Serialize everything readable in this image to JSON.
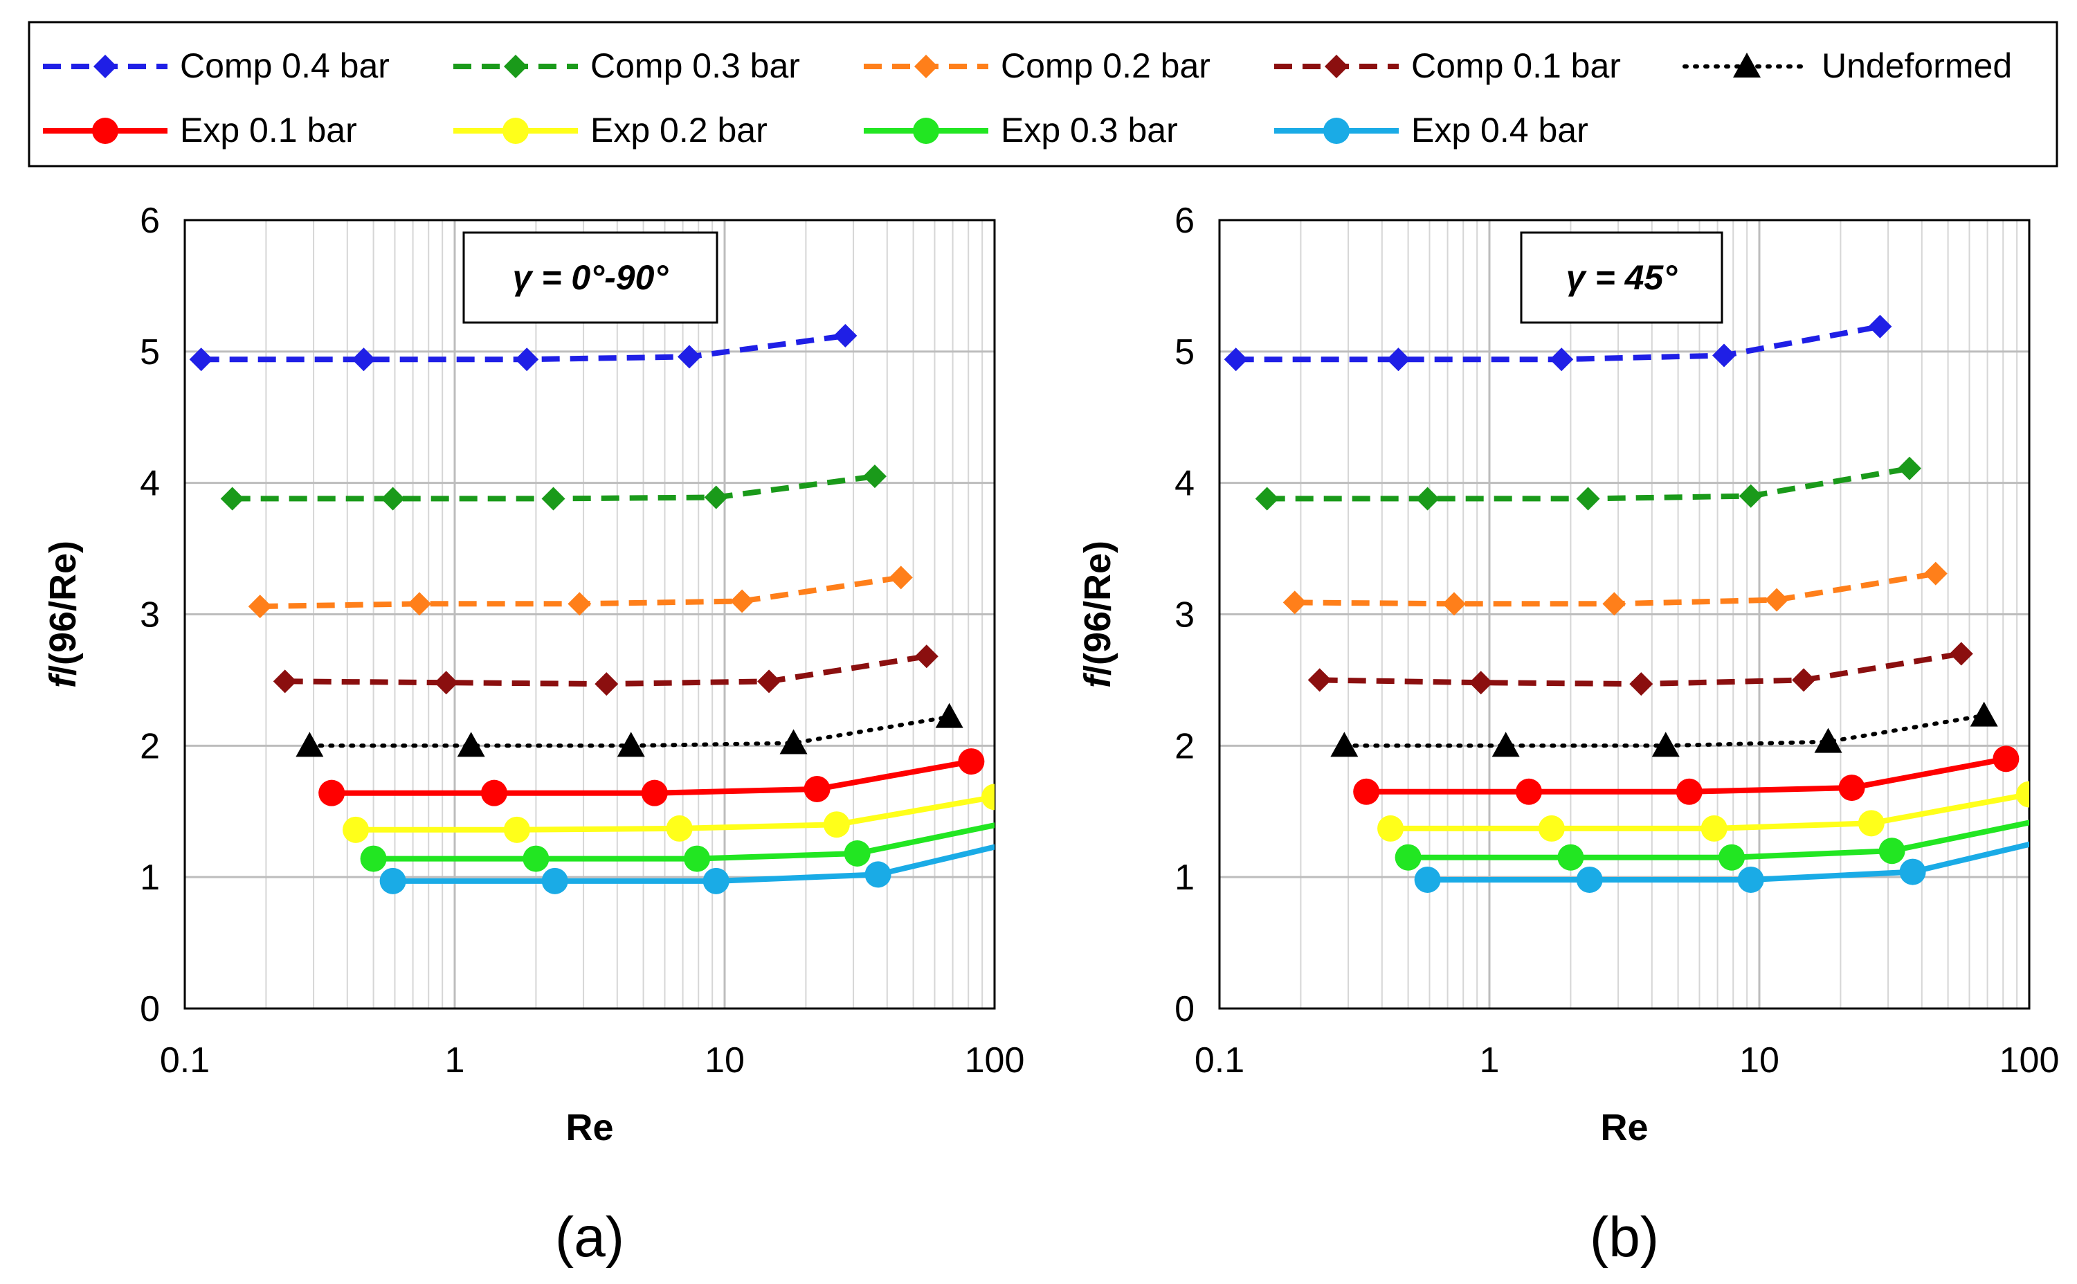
{
  "legend": {
    "placement": "top",
    "entries": [
      {
        "label": "Comp 0.4 bar",
        "color": "#1f1fe6",
        "dash": "dashed",
        "marker": "diamond"
      },
      {
        "label": "Comp 0.3 bar",
        "color": "#1a9a1a",
        "dash": "dashed",
        "marker": "diamond"
      },
      {
        "label": "Comp 0.2 bar",
        "color": "#ff7f1a",
        "dash": "dashed",
        "marker": "diamond"
      },
      {
        "label": "Comp 0.1 bar",
        "color": "#8b0f0f",
        "dash": "dashed",
        "marker": "diamond"
      },
      {
        "label": "Undeformed",
        "color": "#000000",
        "dash": "dotted",
        "marker": "triangle"
      },
      {
        "label": "Exp 0.1 bar",
        "color": "#ff0000",
        "dash": "solid",
        "marker": "circle"
      },
      {
        "label": "Exp 0.2 bar",
        "color": "#ffff1a",
        "dash": "solid",
        "marker": "circle"
      },
      {
        "label": "Exp 0.3 bar",
        "color": "#22e622",
        "dash": "solid",
        "marker": "circle"
      },
      {
        "label": "Exp 0.4 bar",
        "color": "#1aabe6",
        "dash": "solid",
        "marker": "circle"
      }
    ]
  },
  "chart_data": [
    {
      "type": "line",
      "panel_label": "(a)",
      "annotation": "γ = 0°-90°",
      "xlabel": "Re",
      "ylabel": "f/(96/Re)",
      "xscale": "log",
      "xlim": [
        0.1,
        100
      ],
      "ylim": [
        0,
        6
      ],
      "xticks": [
        "0.1",
        "1",
        "10",
        "100"
      ],
      "yticks": [
        "0",
        "1",
        "2",
        "3",
        "4",
        "5",
        "6"
      ],
      "grid": true,
      "series": [
        {
          "name": "Comp 0.4 bar",
          "x": [
            0.115,
            0.46,
            1.85,
            7.4,
            28
          ],
          "y": [
            4.94,
            4.94,
            4.94,
            4.96,
            5.12
          ]
        },
        {
          "name": "Comp 0.3 bar",
          "x": [
            0.15,
            0.59,
            2.32,
            9.3,
            36
          ],
          "y": [
            3.88,
            3.88,
            3.88,
            3.89,
            4.05
          ]
        },
        {
          "name": "Comp 0.2 bar",
          "x": [
            0.19,
            0.74,
            2.9,
            11.6,
            45
          ],
          "y": [
            3.06,
            3.08,
            3.08,
            3.1,
            3.28
          ]
        },
        {
          "name": "Comp 0.1 bar",
          "x": [
            0.235,
            0.93,
            3.65,
            14.6,
            56
          ],
          "y": [
            2.49,
            2.48,
            2.47,
            2.49,
            2.68
          ]
        },
        {
          "name": "Undeformed",
          "x": [
            0.29,
            1.15,
            4.5,
            18,
            68
          ],
          "y": [
            2.0,
            2.0,
            2.0,
            2.02,
            2.22
          ]
        },
        {
          "name": "Exp 0.1 bar",
          "x": [
            0.35,
            1.4,
            5.5,
            22,
            82
          ],
          "y": [
            1.64,
            1.64,
            1.64,
            1.67,
            1.88
          ]
        },
        {
          "name": "Exp 0.2 bar",
          "x": [
            0.43,
            1.7,
            6.8,
            26,
            100
          ],
          "y": [
            1.36,
            1.36,
            1.37,
            1.4,
            1.61
          ]
        },
        {
          "name": "Exp 0.3 bar",
          "x": [
            0.5,
            2.0,
            7.9,
            31,
            115
          ],
          "y": [
            1.14,
            1.14,
            1.14,
            1.18,
            1.42
          ]
        },
        {
          "name": "Exp 0.4 bar",
          "x": [
            0.59,
            2.35,
            9.3,
            37,
            140
          ],
          "y": [
            0.97,
            0.97,
            0.97,
            1.02,
            1.3
          ]
        }
      ]
    },
    {
      "type": "line",
      "panel_label": "(b)",
      "annotation": "γ = 45°",
      "xlabel": "Re",
      "ylabel": "f/(96/Re)",
      "xscale": "log",
      "xlim": [
        0.1,
        100
      ],
      "ylim": [
        0,
        6
      ],
      "xticks": [
        "0.1",
        "1",
        "10",
        "100"
      ],
      "yticks": [
        "0",
        "1",
        "2",
        "3",
        "4",
        "5",
        "6"
      ],
      "grid": true,
      "series": [
        {
          "name": "Comp 0.4 bar",
          "x": [
            0.115,
            0.46,
            1.85,
            7.4,
            28
          ],
          "y": [
            4.94,
            4.94,
            4.94,
            4.97,
            5.19
          ]
        },
        {
          "name": "Comp 0.3 bar",
          "x": [
            0.15,
            0.59,
            2.32,
            9.3,
            36
          ],
          "y": [
            3.88,
            3.88,
            3.88,
            3.9,
            4.11
          ]
        },
        {
          "name": "Comp 0.2 bar",
          "x": [
            0.19,
            0.74,
            2.9,
            11.6,
            45
          ],
          "y": [
            3.09,
            3.08,
            3.08,
            3.11,
            3.31
          ]
        },
        {
          "name": "Comp 0.1 bar",
          "x": [
            0.235,
            0.93,
            3.65,
            14.6,
            56
          ],
          "y": [
            2.5,
            2.48,
            2.47,
            2.5,
            2.7
          ]
        },
        {
          "name": "Undeformed",
          "x": [
            0.29,
            1.15,
            4.5,
            18,
            68
          ],
          "y": [
            2.0,
            2.0,
            2.0,
            2.03,
            2.23
          ]
        },
        {
          "name": "Exp 0.1 bar",
          "x": [
            0.35,
            1.4,
            5.5,
            22,
            82
          ],
          "y": [
            1.65,
            1.65,
            1.65,
            1.68,
            1.9
          ]
        },
        {
          "name": "Exp 0.2 bar",
          "x": [
            0.43,
            1.7,
            6.8,
            26,
            100
          ],
          "y": [
            1.37,
            1.37,
            1.37,
            1.41,
            1.63
          ]
        },
        {
          "name": "Exp 0.3 bar",
          "x": [
            0.5,
            2.0,
            7.9,
            31,
            115
          ],
          "y": [
            1.15,
            1.15,
            1.15,
            1.2,
            1.44
          ]
        },
        {
          "name": "Exp 0.4 bar",
          "x": [
            0.59,
            2.35,
            9.3,
            37,
            140
          ],
          "y": [
            0.98,
            0.98,
            0.98,
            1.04,
            1.32
          ]
        }
      ]
    }
  ]
}
